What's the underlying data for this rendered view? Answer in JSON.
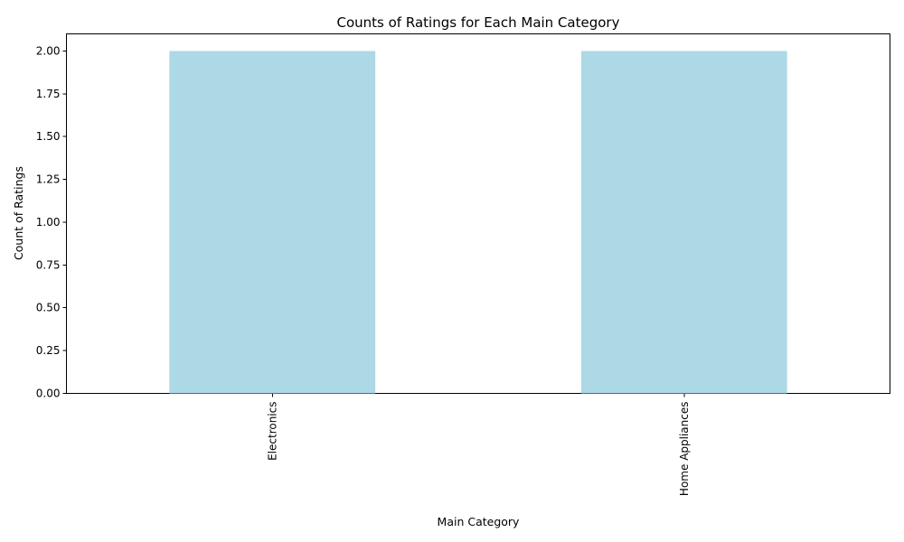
{
  "chart_data": {
    "type": "bar",
    "title": "Counts of Ratings for Each Main Category",
    "xlabel": "Main Category",
    "ylabel": "Count of Ratings",
    "categories": [
      "Electronics",
      "Home Appliances"
    ],
    "values": [
      2,
      2
    ],
    "ylim": [
      0,
      2.1
    ],
    "yticks": [
      "0.00",
      "0.25",
      "0.50",
      "0.75",
      "1.00",
      "1.25",
      "1.50",
      "1.75",
      "2.00"
    ],
    "xtick_rotation": "vertical",
    "grid": false,
    "bar_color": "#add8e6"
  }
}
